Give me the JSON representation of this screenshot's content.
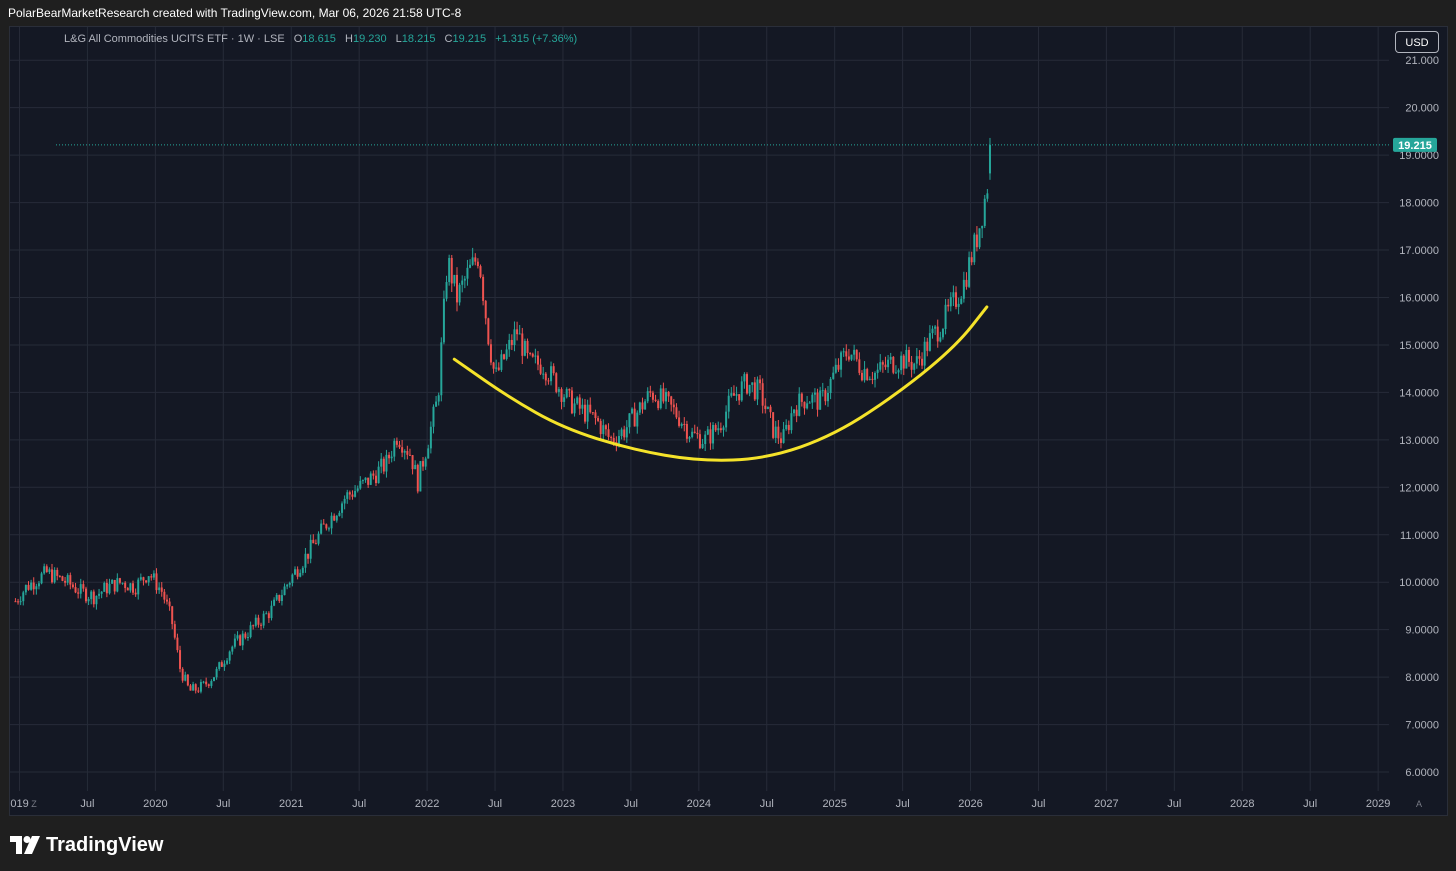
{
  "header": {
    "attribution": "PolarBearMarketResearch created with TradingView.com, Mar 06, 2026 21:58 UTC-8"
  },
  "legend": {
    "symbol": "L&G All Commodities UCITS ETF · 1W · LSE",
    "open_label": "O",
    "open": "18.615",
    "high_label": "H",
    "high": "19.230",
    "low_label": "L",
    "low": "18.215",
    "close_label": "C",
    "close": "19.215",
    "change": "+1.315 (+7.36%)"
  },
  "currency_button": "USD",
  "price_tag": "19.215",
  "corner_left": "Z",
  "corner_right": "A",
  "footer": {
    "brand": "TradingView"
  },
  "colors": {
    "up": "#26a69a",
    "down": "#ef5350",
    "curve": "#f5e32a",
    "background": "#141824",
    "grid": "#262b38",
    "text": "#b2b5be"
  },
  "chart_data": {
    "type": "candlestick",
    "interval": "1W",
    "last_price": 19.215,
    "ylim": [
      5.6,
      21.7
    ],
    "y_ticks": [
      "6.0000",
      "7.0000",
      "8.0000",
      "9.0000",
      "10.0000",
      "11.0000",
      "12.0000",
      "13.0000",
      "14.0000",
      "15.0000",
      "16.0000",
      "17.0000",
      "18.0000",
      "19.0000",
      "20.000",
      "21.000"
    ],
    "y_tick_values": [
      6,
      7,
      8,
      9,
      10,
      11,
      12,
      13,
      14,
      15,
      16,
      17,
      18,
      19,
      20,
      21
    ],
    "xlim": [
      2018.93,
      2029.08
    ],
    "x_ticks": [
      {
        "label": "019",
        "t": 2019.0
      },
      {
        "label": "Jul",
        "t": 2019.5
      },
      {
        "label": "2020",
        "t": 2020.0
      },
      {
        "label": "Jul",
        "t": 2020.5
      },
      {
        "label": "2021",
        "t": 2021.0
      },
      {
        "label": "Jul",
        "t": 2021.5
      },
      {
        "label": "2022",
        "t": 2022.0
      },
      {
        "label": "Jul",
        "t": 2022.5
      },
      {
        "label": "2023",
        "t": 2023.0
      },
      {
        "label": "Jul",
        "t": 2023.5
      },
      {
        "label": "2024",
        "t": 2024.0
      },
      {
        "label": "Jul",
        "t": 2024.5
      },
      {
        "label": "2025",
        "t": 2025.0
      },
      {
        "label": "Jul",
        "t": 2025.5
      },
      {
        "label": "2026",
        "t": 2026.0
      },
      {
        "label": "Jul",
        "t": 2026.5
      },
      {
        "label": "2027",
        "t": 2027.0
      },
      {
        "label": "Jul",
        "t": 2027.5
      },
      {
        "label": "2028",
        "t": 2028.0
      },
      {
        "label": "Jul",
        "t": 2028.5
      },
      {
        "label": "2029",
        "t": 2029.0
      }
    ],
    "price_path": [
      [
        2018.97,
        9.6
      ],
      [
        2019.05,
        9.9
      ],
      [
        2019.2,
        10.2
      ],
      [
        2019.35,
        10.0
      ],
      [
        2019.45,
        9.8
      ],
      [
        2019.55,
        9.7
      ],
      [
        2019.65,
        9.9
      ],
      [
        2019.75,
        10.0
      ],
      [
        2019.85,
        9.9
      ],
      [
        2019.95,
        10.2
      ],
      [
        2020.05,
        9.8
      ],
      [
        2020.12,
        9.2
      ],
      [
        2020.18,
        8.2
      ],
      [
        2020.25,
        7.7
      ],
      [
        2020.35,
        7.8
      ],
      [
        2020.45,
        8.1
      ],
      [
        2020.55,
        8.6
      ],
      [
        2020.7,
        9.0
      ],
      [
        2020.85,
        9.4
      ],
      [
        2021.0,
        10.1
      ],
      [
        2021.12,
        10.6
      ],
      [
        2021.25,
        11.2
      ],
      [
        2021.4,
        11.8
      ],
      [
        2021.55,
        12.1
      ],
      [
        2021.7,
        12.5
      ],
      [
        2021.78,
        13.1
      ],
      [
        2021.88,
        12.7
      ],
      [
        2021.93,
        12.1
      ],
      [
        2022.0,
        12.9
      ],
      [
        2022.08,
        13.9
      ],
      [
        2022.15,
        16.8
      ],
      [
        2022.22,
        16.0
      ],
      [
        2022.3,
        16.5
      ],
      [
        2022.38,
        16.9
      ],
      [
        2022.45,
        15.2
      ],
      [
        2022.5,
        14.3
      ],
      [
        2022.58,
        14.8
      ],
      [
        2022.66,
        15.3
      ],
      [
        2022.75,
        14.6
      ],
      [
        2022.85,
        14.6
      ],
      [
        2022.95,
        14.2
      ],
      [
        2023.05,
        13.8
      ],
      [
        2023.15,
        13.6
      ],
      [
        2023.25,
        13.4
      ],
      [
        2023.35,
        13.0
      ],
      [
        2023.45,
        13.2
      ],
      [
        2023.55,
        13.6
      ],
      [
        2023.65,
        14.0
      ],
      [
        2023.75,
        13.8
      ],
      [
        2023.85,
        13.5
      ],
      [
        2023.95,
        13.1
      ],
      [
        2024.05,
        13.0
      ],
      [
        2024.15,
        13.3
      ],
      [
        2024.25,
        13.9
      ],
      [
        2024.35,
        14.2
      ],
      [
        2024.45,
        14.0
      ],
      [
        2024.55,
        13.2
      ],
      [
        2024.62,
        13.0
      ],
      [
        2024.7,
        13.7
      ],
      [
        2024.8,
        13.9
      ],
      [
        2024.9,
        13.8
      ],
      [
        2025.0,
        14.4
      ],
      [
        2025.1,
        14.9
      ],
      [
        2025.2,
        14.5
      ],
      [
        2025.3,
        14.4
      ],
      [
        2025.4,
        14.6
      ],
      [
        2025.5,
        14.7
      ],
      [
        2025.6,
        14.6
      ],
      [
        2025.7,
        15.1
      ],
      [
        2025.8,
        15.5
      ],
      [
        2025.88,
        15.9
      ],
      [
        2025.95,
        16.3
      ],
      [
        2026.0,
        16.8
      ],
      [
        2026.05,
        17.3
      ],
      [
        2026.1,
        18.0
      ],
      [
        2026.14,
        18.6
      ],
      [
        2026.16,
        19.215
      ]
    ],
    "annotation_curve": {
      "description": "",
      "points": [
        [
          2022.2,
          14.7
        ],
        [
          2022.6,
          13.9
        ],
        [
          2023.0,
          13.25
        ],
        [
          2023.5,
          12.8
        ],
        [
          2024.0,
          12.55
        ],
        [
          2024.5,
          12.6
        ],
        [
          2025.0,
          13.1
        ],
        [
          2025.5,
          14.05
        ],
        [
          2025.9,
          15.0
        ],
        [
          2026.12,
          15.8
        ]
      ]
    }
  }
}
